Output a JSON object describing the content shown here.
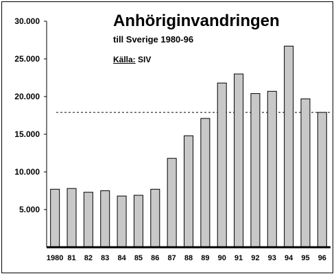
{
  "chart_data": {
    "type": "bar",
    "title": "Anhöriginvandringen",
    "subtitle": "till Sverige 1980-96",
    "source_label": "Källa:",
    "source_value": "SIV",
    "categories": [
      "1980",
      "81",
      "82",
      "83",
      "84",
      "85",
      "86",
      "87",
      "88",
      "89",
      "90",
      "91",
      "92",
      "93",
      "94",
      "95",
      "96"
    ],
    "values": [
      7700,
      7800,
      7300,
      7500,
      6800,
      6900,
      7700,
      11800,
      14800,
      17100,
      21800,
      23000,
      20400,
      20700,
      26700,
      19700,
      17900
    ],
    "ylim": [
      0,
      30000
    ],
    "yticks": [
      5000,
      10000,
      15000,
      20000,
      25000,
      30000
    ],
    "ytick_labels": [
      "5.000",
      "10.000",
      "15.000",
      "20.000",
      "25.000",
      "30.000"
    ],
    "reference_line": 17900,
    "bar_color": "#c8c8c8",
    "grid": false
  }
}
